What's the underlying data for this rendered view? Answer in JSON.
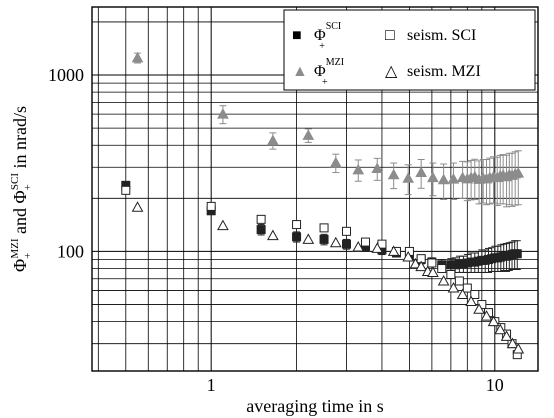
{
  "chart_data": {
    "type": "scatter",
    "xlabel": "averaging time in s",
    "ylabel": {
      "parts": [
        {
          "t": "Φ",
          "sub": "+",
          "sup": "MZI"
        },
        {
          "t": " and Φ",
          "sub": "+",
          "sup": "SCI"
        },
        {
          "t": " in nrad/s"
        }
      ]
    },
    "xscale": "log",
    "yscale": "log",
    "xlim": [
      0.38,
      14.2
    ],
    "ylim": [
      21,
      2430
    ],
    "x_ticks": [
      1,
      10
    ],
    "y_ticks": [
      100,
      1000
    ],
    "x_tick_labels": [
      "1",
      "10"
    ],
    "y_tick_labels": [
      "100",
      "1000"
    ],
    "grid": true,
    "legend": {
      "position": "top-right",
      "entries": [
        {
          "key": "sci",
          "sym": "■",
          "base": "Φ",
          "sub": "+",
          "sup": "SCI"
        },
        {
          "key": "seis_sci",
          "sym": "□",
          "label": "seism. SCI"
        },
        {
          "key": "mzi",
          "sym": "▲",
          "base": "Φ",
          "sub": "+",
          "sup": "MZI"
        },
        {
          "key": "seis_mzi",
          "sym": "△",
          "label": "seism. MZI"
        }
      ]
    },
    "series": [
      {
        "key": "sci",
        "marker": "square-filled",
        "color": "#222222",
        "x": [
          0.5,
          1.0,
          1.5,
          2.0,
          2.5,
          3.0,
          3.5,
          4.0,
          4.5,
          5.0,
          5.5,
          6.0,
          6.5,
          7.0,
          7.25,
          7.5,
          7.75,
          8.0,
          8.25,
          8.5,
          8.75,
          9.0,
          9.25,
          9.5,
          9.75,
          10.0,
          10.25,
          10.5,
          10.75,
          11.0,
          11.25,
          11.5,
          11.75,
          12.0
        ],
        "y": [
          237,
          170,
          133,
          121,
          117,
          110,
          106,
          102,
          98,
          94,
          90,
          87,
          84,
          84,
          84,
          85,
          85,
          86,
          87,
          87,
          88,
          89,
          89,
          90,
          91,
          92,
          92,
          93,
          94,
          94,
          95,
          96,
          97,
          97
        ],
        "err": [
          0,
          8,
          9,
          8,
          8,
          7,
          6,
          6,
          5,
          5,
          5,
          5,
          6,
          7,
          8,
          9,
          9,
          10,
          11,
          11,
          12,
          13,
          13,
          14,
          14,
          15,
          15,
          16,
          16,
          17,
          17,
          17,
          18,
          18
        ]
      },
      {
        "key": "seis_sci",
        "marker": "square-open",
        "color": "#222222",
        "x": [
          0.5,
          1.0,
          1.5,
          2.0,
          2.5,
          3.0,
          3.5,
          4.0,
          4.5,
          5.0,
          5.5,
          6.0,
          6.5,
          7.0,
          7.5,
          8.0,
          8.5,
          9.0,
          9.5,
          10.0,
          10.5,
          11.0,
          11.5,
          12.0
        ],
        "y": [
          222,
          180,
          152,
          142,
          136,
          130,
          113,
          110,
          100,
          100,
          91,
          86,
          80,
          74,
          68,
          62,
          57,
          50,
          45,
          40,
          37,
          34,
          30,
          26
        ]
      },
      {
        "key": "mzi",
        "marker": "triangle-filled",
        "color": "#8c8c8c",
        "x": [
          0.55,
          1.1,
          1.65,
          2.2,
          2.75,
          3.3,
          3.85,
          4.4,
          4.95,
          5.5,
          6.05,
          6.6,
          7.15,
          7.7,
          8.0,
          8.25,
          8.5,
          8.8,
          9.1,
          9.35,
          9.6,
          9.9,
          10.2,
          10.45,
          10.7,
          11.0,
          11.25,
          11.5,
          11.8,
          12.1
        ],
        "y": [
          1250,
          600,
          425,
          455,
          318,
          290,
          295,
          272,
          260,
          280,
          262,
          255,
          257,
          262,
          258,
          262,
          265,
          256,
          260,
          258,
          262,
          266,
          262,
          268,
          270,
          265,
          272,
          270,
          275,
          278
        ],
        "err": [
          80,
          70,
          45,
          40,
          38,
          40,
          42,
          45,
          50,
          52,
          55,
          58,
          60,
          62,
          64,
          66,
          68,
          70,
          72,
          74,
          76,
          78,
          80,
          82,
          84,
          86,
          88,
          90,
          92,
          94
        ]
      },
      {
        "key": "seis_mzi",
        "marker": "triangle-open",
        "color": "#222222",
        "x": [
          0.55,
          1.1,
          1.65,
          2.2,
          2.75,
          3.3,
          3.85,
          4.4,
          4.95,
          5.25,
          5.5,
          5.8,
          6.05,
          6.6,
          7.15,
          7.7,
          8.25,
          8.8,
          9.35,
          9.9,
          10.45,
          11.0,
          11.55,
          12.1
        ],
        "y": [
          178,
          140,
          123,
          117,
          112,
          106,
          104,
          100,
          93,
          85,
          82,
          77,
          76,
          68,
          62,
          57,
          52,
          47,
          43,
          40,
          36,
          33,
          30,
          28
        ]
      }
    ]
  }
}
